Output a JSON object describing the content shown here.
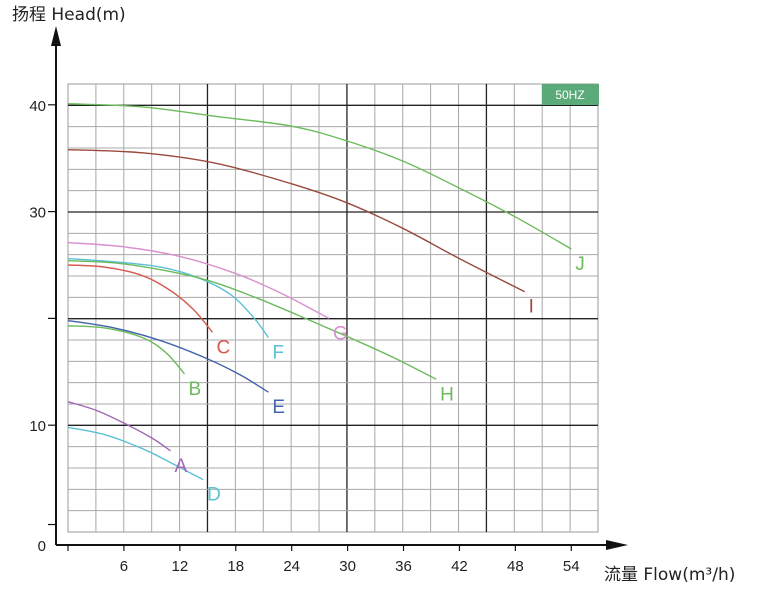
{
  "chart_data": {
    "type": "line",
    "title": "",
    "ylabel": "扬程 Head(m)",
    "xlabel": "流量 Flow(m³/h)",
    "badge": "50HZ",
    "badge_color": "#5aaa7a",
    "x_ticks": [
      "6",
      "12",
      "18",
      "24",
      "30",
      "36",
      "42",
      "48",
      "54"
    ],
    "x_tick_values": [
      6,
      12,
      18,
      24,
      30,
      36,
      42,
      48,
      54
    ],
    "y_ticks": [
      "0",
      "10",
      "30",
      "40"
    ],
    "y_tick_values": [
      0,
      10,
      30,
      40
    ],
    "xlim": [
      0,
      57
    ],
    "ylim": [
      0,
      43
    ],
    "grid": true,
    "series": [
      {
        "name": "A",
        "color": "#a066b4",
        "points": [
          [
            0,
            12.2
          ],
          [
            3,
            11.4
          ],
          [
            6,
            10.2
          ],
          [
            9,
            8.8
          ],
          [
            11,
            7.6
          ]
        ]
      },
      {
        "name": "B",
        "color": "#6cbb5c",
        "points": [
          [
            0,
            19.3
          ],
          [
            4,
            19.1
          ],
          [
            8,
            18.2
          ],
          [
            10.5,
            16.8
          ],
          [
            12.5,
            14.8
          ]
        ]
      },
      {
        "name": "C",
        "color": "#d55a4f",
        "points": [
          [
            0,
            25.0
          ],
          [
            4,
            24.8
          ],
          [
            8,
            24.0
          ],
          [
            11,
            22.6
          ],
          [
            13.5,
            20.8
          ],
          [
            15.5,
            18.7
          ]
        ]
      },
      {
        "name": "D",
        "color": "#5cc0d4",
        "points": [
          [
            0,
            9.8
          ],
          [
            4,
            9.1
          ],
          [
            8,
            7.8
          ],
          [
            11,
            6.5
          ],
          [
            14.5,
            4.9
          ]
        ]
      },
      {
        "name": "E",
        "color": "#4363aa",
        "points": [
          [
            0,
            19.8
          ],
          [
            5,
            19.1
          ],
          [
            10,
            17.9
          ],
          [
            15,
            16.2
          ],
          [
            18.5,
            14.7
          ],
          [
            21.5,
            13.1
          ]
        ]
      },
      {
        "name": "F",
        "color": "#5cc0d4",
        "points": [
          [
            0,
            25.6
          ],
          [
            5,
            25.3
          ],
          [
            10,
            24.8
          ],
          [
            14,
            23.8
          ],
          [
            17.5,
            22.2
          ],
          [
            20,
            20.0
          ],
          [
            21.5,
            18.2
          ]
        ]
      },
      {
        "name": "G",
        "color": "#d98fd0",
        "points": [
          [
            0,
            27.1
          ],
          [
            6,
            26.7
          ],
          [
            12,
            25.8
          ],
          [
            18,
            24.2
          ],
          [
            23,
            22.3
          ],
          [
            28,
            20.0
          ]
        ]
      },
      {
        "name": "H",
        "color": "#6cbb5c",
        "points": [
          [
            0,
            25.4
          ],
          [
            6,
            25.1
          ],
          [
            14,
            23.8
          ],
          [
            20,
            22.0
          ],
          [
            26,
            19.8
          ],
          [
            31,
            17.9
          ],
          [
            35,
            16.3
          ],
          [
            39.5,
            14.3
          ]
        ]
      },
      {
        "name": "I",
        "color": "#9a4a3c",
        "points": [
          [
            0,
            35.8
          ],
          [
            8,
            35.5
          ],
          [
            16,
            34.5
          ],
          [
            24,
            32.6
          ],
          [
            30,
            30.8
          ],
          [
            36,
            28.4
          ],
          [
            42,
            25.6
          ],
          [
            49,
            22.5
          ]
        ]
      },
      {
        "name": "J",
        "color": "#6cbb5c",
        "points": [
          [
            0,
            40.1
          ],
          [
            8,
            39.8
          ],
          [
            16,
            38.9
          ],
          [
            24,
            38.0
          ],
          [
            30,
            36.6
          ],
          [
            36,
            34.7
          ],
          [
            42,
            32.2
          ],
          [
            48,
            29.5
          ],
          [
            54,
            26.5
          ]
        ]
      }
    ],
    "labels": {
      "A": "A",
      "B": "B",
      "C": "C",
      "D": "D",
      "E": "E",
      "F": "F",
      "G": "G",
      "H": "H",
      "I": "I",
      "J": "J"
    }
  }
}
